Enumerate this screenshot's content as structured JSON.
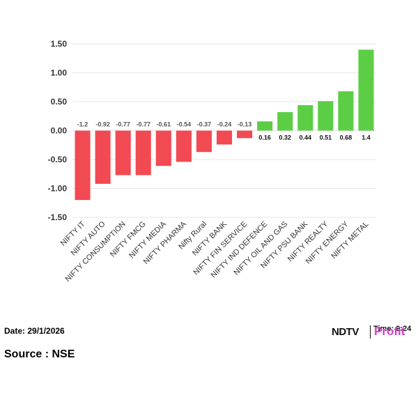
{
  "chart_data": {
    "type": "bar",
    "categories": [
      "NIFTY IT",
      "NIFTY AUTO",
      "NIFTY CONSUMPTION",
      "NIFTY FMCG",
      "NIFTY MEDIA",
      "NIFTY PHARMA",
      "Nifty Rural",
      "NIFTY BANK",
      "NIFTY FIN SERVICE",
      "NIFTY IND DEFENCE",
      "NIFTY OIL AND GAS",
      "NIFTY PSU BANK",
      "NIFTY REALTY",
      "NIFTY ENERGY",
      "NIFTY METAL"
    ],
    "values": [
      -1.2,
      -0.92,
      -0.77,
      -0.77,
      -0.61,
      -0.54,
      -0.37,
      -0.24,
      -0.13,
      0.16,
      0.32,
      0.44,
      0.51,
      0.68,
      1.4
    ],
    "data_labels": [
      "-1.2",
      "-0.92",
      "-0.77",
      "-0.77",
      "-0.61",
      "-0.54",
      "-0.37",
      "-0.24",
      "-0.13",
      "0.16",
      "0.32",
      "0.44",
      "0.51",
      "0.68",
      "1.4"
    ],
    "ylim": [
      -1.5,
      1.5
    ],
    "yticks": [
      1.5,
      1.0,
      0.5,
      0.0,
      -0.5,
      -1.0,
      -1.5
    ],
    "ytick_labels": [
      "1.50",
      "1.00",
      "0.50",
      "0.00",
      "-0.50",
      "-1.00",
      "-1.50"
    ],
    "grid": true,
    "colors": {
      "negative": "#f24a52",
      "positive": "#5cce45",
      "grid": "#e6e6e6",
      "label": "#333333"
    }
  },
  "footer": {
    "date_text": "Date: 29/1/2026",
    "source_text": "Source : NSE",
    "logo_brand": "NDTV",
    "logo_product": "Profit",
    "time_text": "Time: 9:24"
  }
}
